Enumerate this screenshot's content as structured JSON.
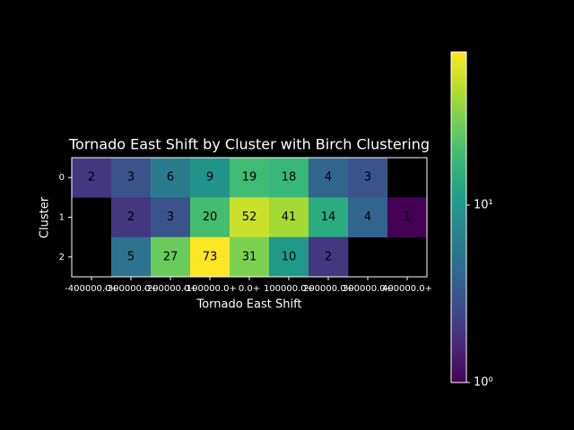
{
  "chart_data": {
    "type": "heatmap",
    "title": "Tornado East Shift by Cluster with Birch Clustering",
    "xlabel": "Tornado East Shift",
    "ylabel": "Cluster",
    "x_categories": [
      "-400000.0+",
      "-300000.0+",
      "-200000.0+",
      "-100000.0+",
      "0.0+",
      "100000.0+",
      "200000.0+",
      "300000.0+",
      "400000.0+"
    ],
    "y_categories": [
      "0",
      "1",
      "2"
    ],
    "values": [
      [
        2,
        3,
        6,
        9,
        19,
        18,
        4,
        3,
        null
      ],
      [
        null,
        2,
        3,
        20,
        52,
        41,
        14,
        4,
        1
      ],
      [
        null,
        5,
        27,
        73,
        31,
        10,
        2,
        null,
        null
      ]
    ],
    "colormap": "viridis",
    "color_scale": "log",
    "clim": [
      1,
      73
    ],
    "cticks": [
      {
        "value": 1,
        "label": "10⁰"
      },
      {
        "value": 10,
        "label": "10¹"
      }
    ]
  }
}
